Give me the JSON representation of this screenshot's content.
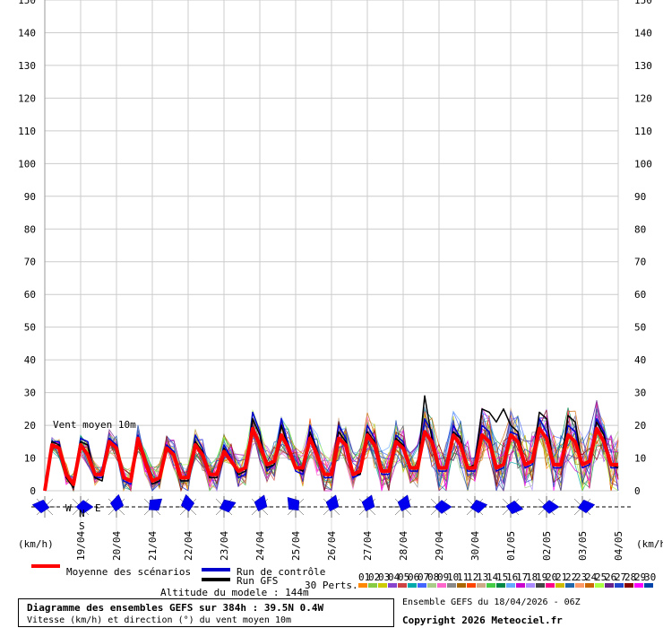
{
  "chart_data": {
    "type": "line",
    "ylim": [
      0,
      150
    ],
    "yticks": [
      0,
      10,
      20,
      30,
      40,
      50,
      60,
      70,
      80,
      90,
      100,
      110,
      120,
      130,
      140,
      150
    ],
    "date_labels": [
      "19/04",
      "20/04",
      "21/04",
      "22/04",
      "23/04",
      "24/04",
      "25/04",
      "26/04",
      "27/04",
      "28/04",
      "29/04",
      "30/04",
      "01/05",
      "02/05",
      "03/05",
      "04/05"
    ],
    "unit_label": "(km/h)",
    "annotation": "Vent moyen 10m",
    "series": [
      {
        "name": "Moyenne des scénarios",
        "color": "#ff0000",
        "values": [
          0,
          14,
          13,
          5,
          2,
          14,
          11,
          5,
          5,
          15,
          13,
          4,
          3,
          16,
          9,
          3,
          4,
          13,
          11,
          4,
          4,
          14,
          11,
          5,
          5,
          12,
          9,
          6,
          7,
          19,
          14,
          8,
          9,
          17,
          13,
          7,
          7,
          16,
          11,
          5,
          5,
          16,
          14,
          5,
          6,
          17,
          14,
          6,
          6,
          15,
          13,
          7,
          7,
          18,
          15,
          7,
          7,
          17,
          14,
          7,
          7,
          17,
          15,
          7,
          8,
          17,
          15,
          8,
          9,
          19,
          16,
          8,
          8,
          17,
          15,
          8,
          9,
          19,
          15,
          8,
          8
        ]
      },
      {
        "name": "Run de contrôle",
        "color": "#0000cc",
        "values": [
          0,
          15,
          15,
          4,
          1,
          16,
          15,
          4,
          4,
          16,
          14,
          3,
          2,
          17,
          10,
          2,
          3,
          14,
          12,
          3,
          3,
          17,
          13,
          4,
          4,
          14,
          10,
          4,
          5,
          24,
          18,
          6,
          8,
          22,
          14,
          6,
          5,
          20,
          12,
          4,
          4,
          20,
          16,
          4,
          5,
          20,
          16,
          5,
          5,
          17,
          15,
          6,
          6,
          22,
          18,
          6,
          6,
          20,
          16,
          6,
          6,
          20,
          18,
          6,
          7,
          18,
          17,
          7,
          8,
          22,
          18,
          7,
          7,
          20,
          18,
          7,
          8,
          22,
          18,
          7,
          7
        ]
      },
      {
        "name": "Run GFS",
        "color": "#000000",
        "values": [
          0,
          15,
          14,
          4,
          1,
          15,
          14,
          4,
          3,
          15,
          13,
          4,
          3,
          16,
          10,
          2,
          3,
          13,
          11,
          3,
          3,
          15,
          12,
          4,
          4,
          13,
          9,
          5,
          6,
          22,
          17,
          7,
          8,
          20,
          13,
          7,
          6,
          18,
          12,
          5,
          5,
          18,
          15,
          5,
          5,
          18,
          15,
          6,
          6,
          16,
          14,
          7,
          7,
          29,
          16,
          7,
          7,
          18,
          16,
          7,
          8,
          25,
          24,
          21,
          25,
          20,
          18,
          8,
          9,
          24,
          22,
          8,
          8,
          23,
          21,
          8,
          9,
          21,
          17,
          8,
          7
        ]
      }
    ],
    "legend": {
      "mean": "Moyenne des scénarios",
      "control": "Run de contrôle",
      "gfs": "Run GFS",
      "perts": "30 Perts."
    },
    "pert_labels": [
      "01",
      "02",
      "03",
      "04",
      "05",
      "06",
      "07",
      "08",
      "09",
      "10",
      "11",
      "12",
      "13",
      "14",
      "15",
      "16",
      "17",
      "18",
      "19",
      "20",
      "21",
      "22",
      "23",
      "24",
      "25",
      "26",
      "27",
      "28",
      "29",
      "30"
    ],
    "pert_colors": [
      "#ff8800",
      "#88cc44",
      "#cccc00",
      "#8844cc",
      "#cc4444",
      "#00aaaa",
      "#4466ff",
      "#aacc88",
      "#ff66cc",
      "#888888",
      "#aa6600",
      "#ff4400",
      "#ccaa88",
      "#44cc44",
      "#008844",
      "#66aaff",
      "#cc00cc",
      "#aa88ff",
      "#444444",
      "#ff0088",
      "#ccbb00",
      "#2266aa",
      "#ff9966",
      "#cc6600",
      "#aaff44",
      "#662288",
      "#2244cc",
      "#880000",
      "#ff00ff",
      "#0044aa"
    ],
    "wind_dirs": [
      280,
      350,
      120,
      110,
      90,
      60,
      40,
      80,
      10,
      30,
      70,
      300,
      50,
      60,
      40,
      160,
      350,
      20,
      40,
      60,
      70,
      80,
      60,
      30,
      20,
      20,
      10,
      20,
      320,
      50,
      10,
      300,
      20,
      30,
      330,
      10,
      20,
      20,
      10,
      30,
      20,
      90,
      100,
      80,
      90,
      70,
      60,
      70,
      80,
      90,
      10,
      90,
      100,
      350,
      70,
      80,
      90,
      100,
      60,
      50,
      80,
      90
    ]
  },
  "title_box": {
    "line1": "Diagramme des ensembles GEFS sur 384h : 39.5N 0.4W",
    "line2": "Vitesse (km/h) et direction (°) du vent moyen 10m"
  },
  "altitude": "Altitude du modele : 144m",
  "run_info": "Ensemble GEFS du 18/04/2026 - 06Z",
  "copyright": "Copyright 2026 Meteociel.fr",
  "rose_letters": {
    "n": "N",
    "w": "W",
    "e": "E",
    "s": "S"
  }
}
